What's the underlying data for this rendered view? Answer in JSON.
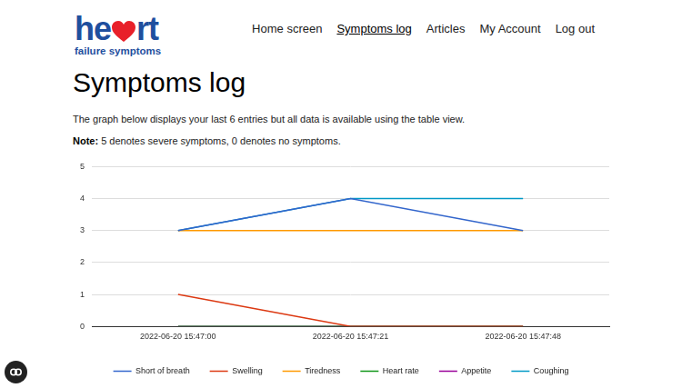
{
  "header": {
    "logo_left": "he",
    "logo_right": "rt",
    "logo_subtitle": "failure symptoms",
    "nav": [
      "Home screen",
      "Symptoms log",
      "Articles",
      "My Account",
      "Log out"
    ],
    "active_nav": "Symptoms log"
  },
  "page": {
    "title": "Symptoms log",
    "intro": "The graph below displays your last 6 entries but all data is available using the table view.",
    "note_label": "Note:",
    "note_text": "5 denotes severe symptoms, 0 denotes no symptoms."
  },
  "chart_data": {
    "type": "line",
    "categories": [
      "2022-06-20 15:47:00",
      "2022-06-20 15:47:21",
      "2022-06-20 15:47:48"
    ],
    "series": [
      {
        "name": "Short of breath",
        "color": "#3366cc",
        "values": [
          3,
          4,
          3
        ]
      },
      {
        "name": "Swelling",
        "color": "#dc3912",
        "values": [
          1,
          0,
          0
        ]
      },
      {
        "name": "Tiredness",
        "color": "#ff9900",
        "values": [
          3,
          3,
          3
        ]
      },
      {
        "name": "Heart rate",
        "color": "#109618",
        "values": [
          0,
          0,
          0
        ]
      },
      {
        "name": "Appetite",
        "color": "#990099",
        "values": [
          0,
          0,
          0
        ]
      },
      {
        "name": "Coughing",
        "color": "#0099c6",
        "values": [
          3,
          4,
          4
        ]
      }
    ],
    "ylim": [
      0,
      5
    ],
    "yticks": [
      0,
      1,
      2,
      3,
      4,
      5
    ],
    "grid": true,
    "legend": "bottom"
  }
}
